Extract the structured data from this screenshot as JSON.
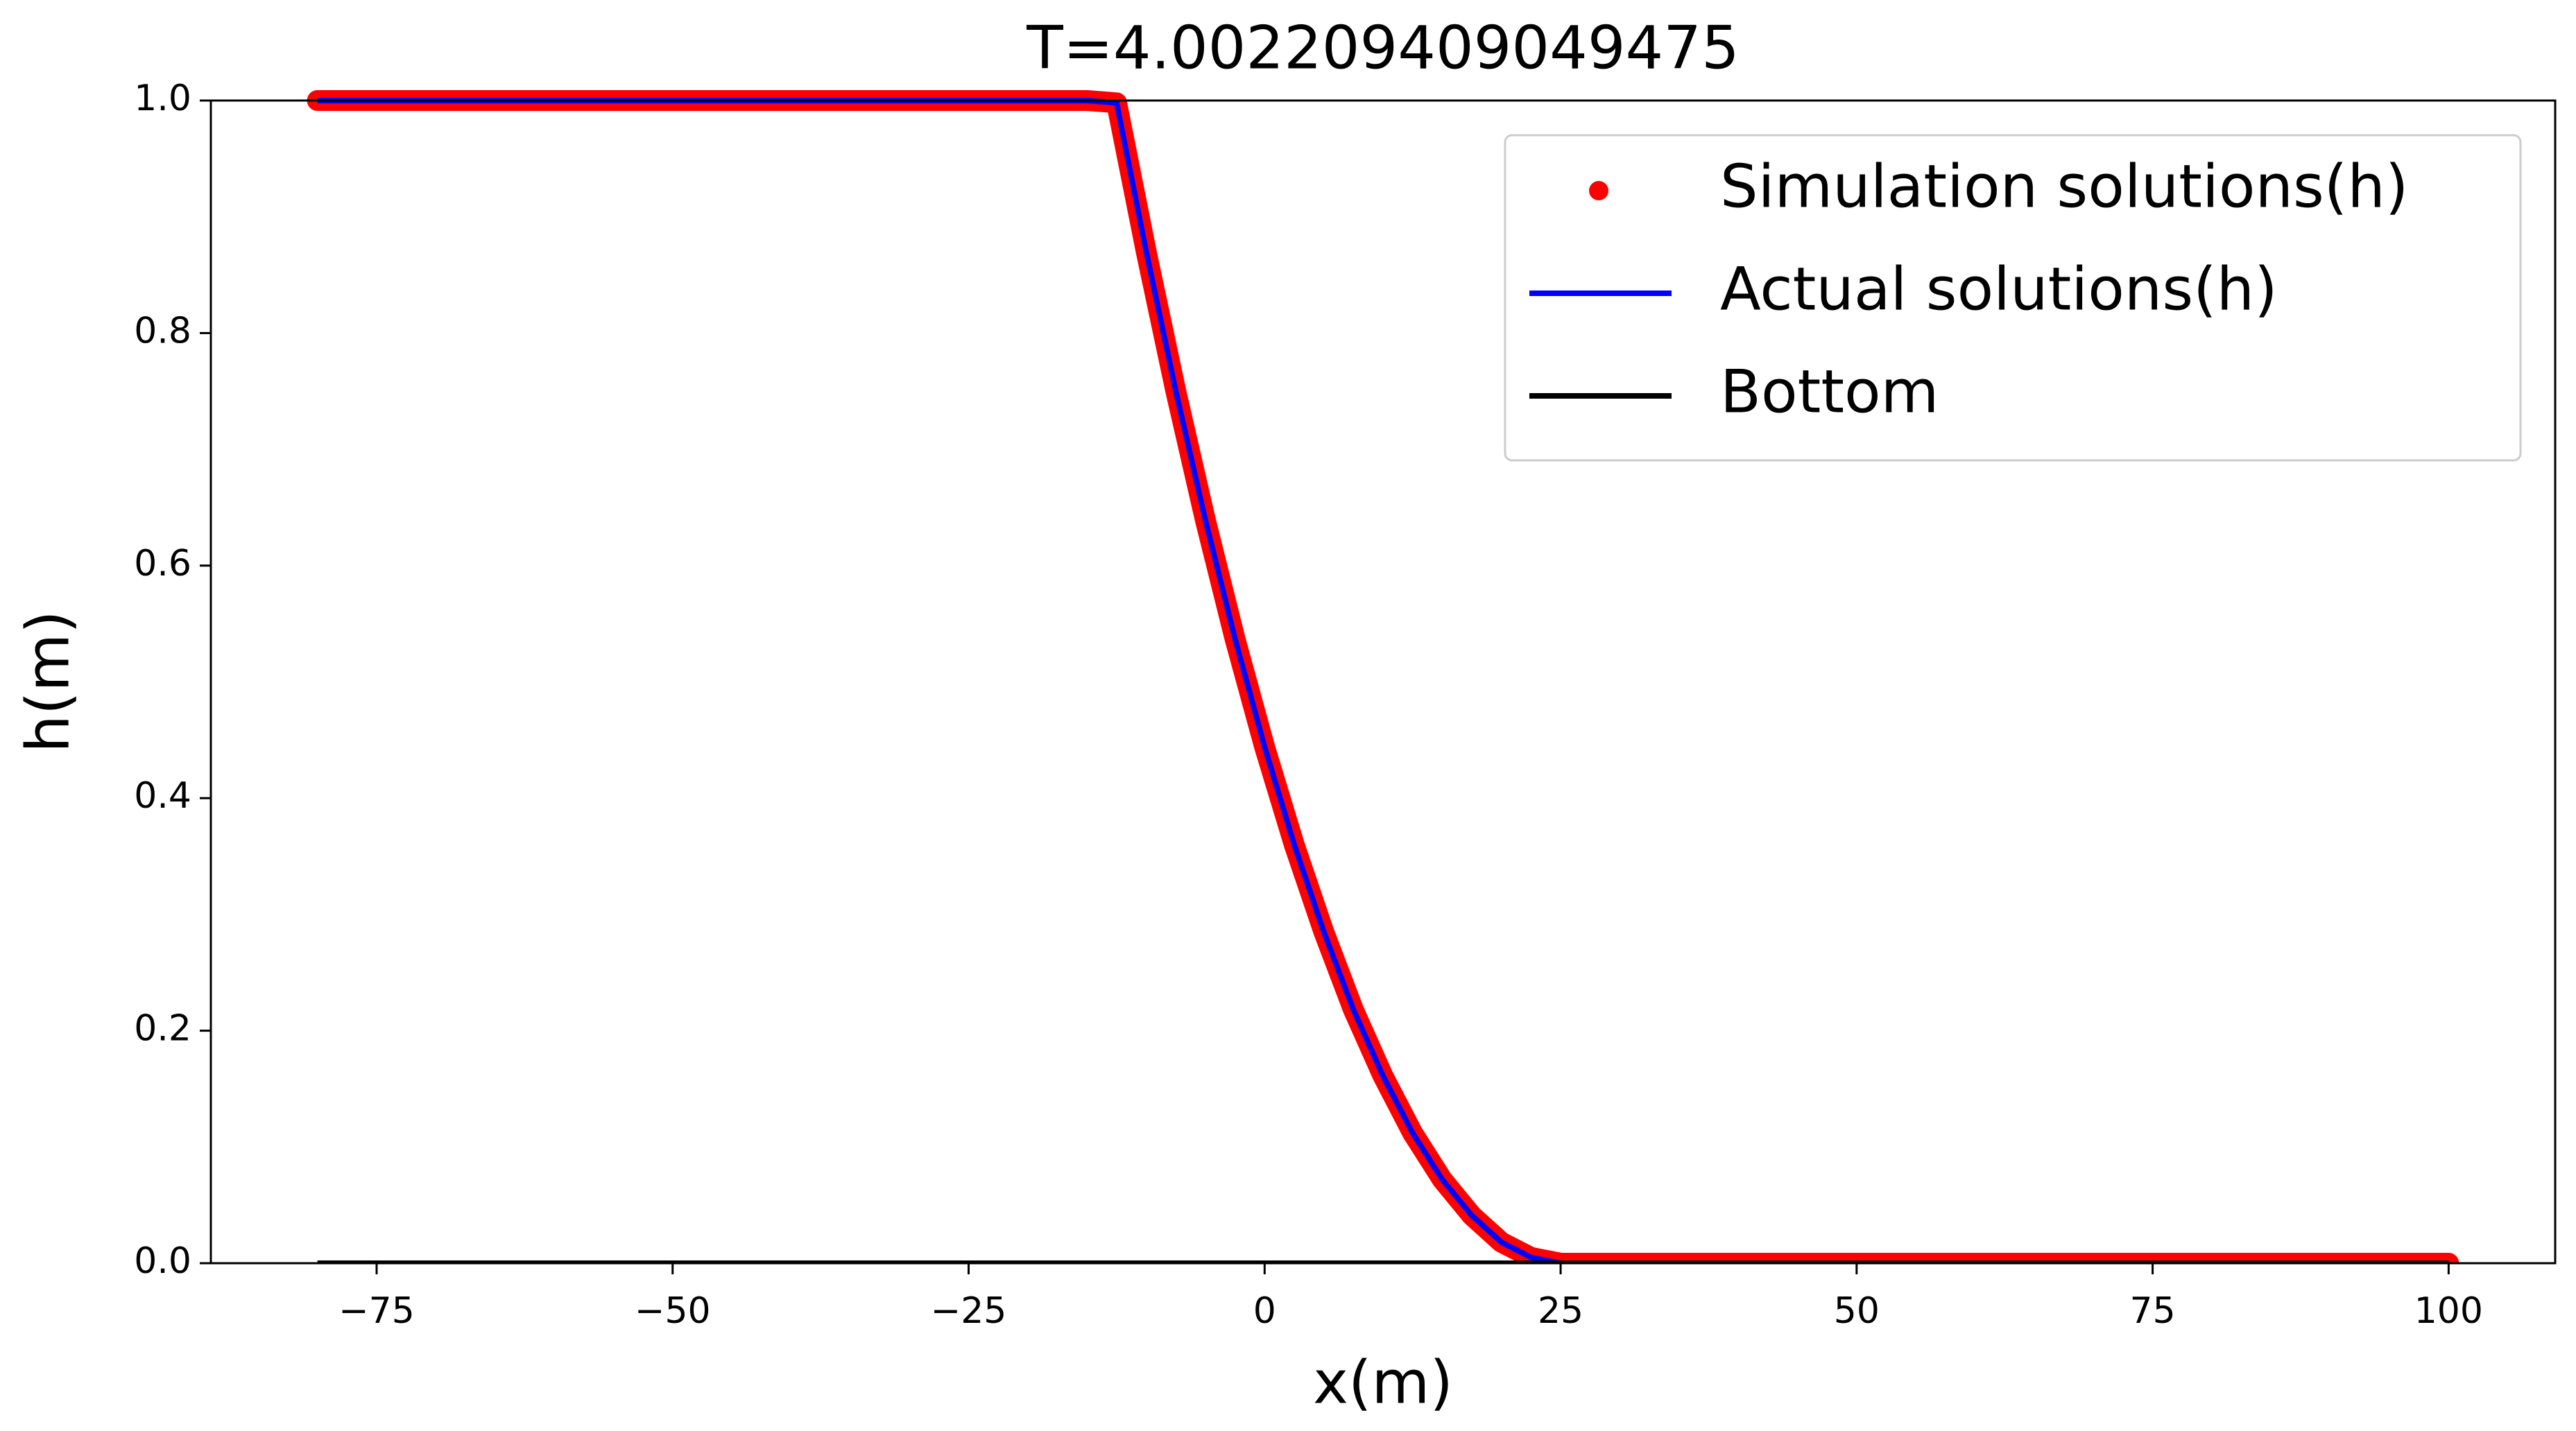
{
  "chart_data": {
    "type": "line",
    "title": "T=4.002209409049475",
    "x_label": "x(m)",
    "y_label": "h(m)",
    "x": [
      -80,
      -70,
      -60,
      -50,
      -40,
      -30,
      -20,
      -15,
      -12.5,
      -10,
      -7.5,
      -5,
      -2.5,
      0,
      2.5,
      5,
      7.5,
      10,
      12.5,
      15,
      17.5,
      20,
      22.5,
      25,
      30,
      40,
      50,
      60,
      70,
      80,
      90,
      100
    ],
    "series": [
      {
        "name": "Simulation solutions(h)",
        "color": "#ff0000",
        "style": "dots",
        "values": [
          1,
          1,
          1,
          1,
          1,
          1,
          1,
          1,
          0.998,
          0.87,
          0.75,
          0.639,
          0.537,
          0.444,
          0.36,
          0.285,
          0.218,
          0.161,
          0.112,
          0.072,
          0.041,
          0.018,
          0.005,
          0,
          0,
          0,
          0,
          0,
          0,
          0,
          0,
          0
        ]
      },
      {
        "name": "Actual solutions(h)",
        "color": "#0000ff",
        "style": "line",
        "values": [
          1,
          1,
          1,
          1,
          1,
          1,
          1,
          1,
          0.998,
          0.87,
          0.75,
          0.639,
          0.537,
          0.444,
          0.36,
          0.285,
          0.218,
          0.161,
          0.112,
          0.072,
          0.041,
          0.018,
          0.005,
          0,
          0,
          0,
          0,
          0,
          0,
          0,
          0,
          0
        ]
      },
      {
        "name": "Bottom",
        "color": "#000000",
        "style": "line",
        "values": [
          0,
          0,
          0,
          0,
          0,
          0,
          0,
          0,
          0,
          0,
          0,
          0,
          0,
          0,
          0,
          0,
          0,
          0,
          0,
          0,
          0,
          0,
          0,
          0,
          0,
          0,
          0,
          0,
          0,
          0,
          0,
          0
        ]
      }
    ],
    "xlim": [
      -89,
      109
    ],
    "xticks": [
      {
        "value": -75,
        "label": "−75"
      },
      {
        "value": -50,
        "label": "−50"
      },
      {
        "value": -25,
        "label": "−25"
      },
      0,
      25,
      50,
      75,
      100
    ],
    "ylim": [
      0,
      1
    ],
    "yticks": [
      {
        "value": 0,
        "label": "0.0"
      },
      {
        "value": 0.2,
        "label": "0.2"
      },
      {
        "value": 0.4,
        "label": "0.4"
      },
      {
        "value": 0.6,
        "label": "0.6"
      },
      {
        "value": 0.8,
        "label": "0.8"
      },
      {
        "value": 1,
        "label": "1.0"
      }
    ],
    "legend": "upper right",
    "grid": false
  }
}
